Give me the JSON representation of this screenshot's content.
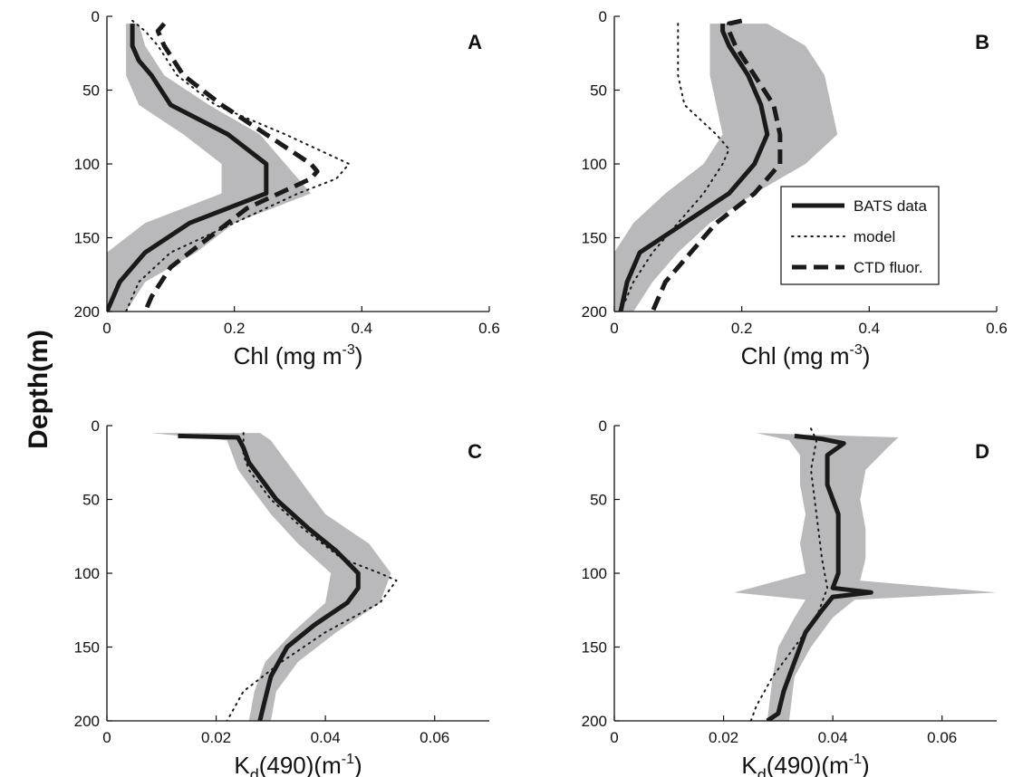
{
  "figure": {
    "ylabel": "Depth(m)"
  },
  "legend": {
    "entries": [
      {
        "label": "BATS data",
        "style": "solid"
      },
      {
        "label": "model",
        "style": "dotted"
      },
      {
        "label": "CTD fluor.",
        "style": "dashed"
      }
    ]
  },
  "colors": {
    "line": "#1a1a1a",
    "band": "#b9b9bc",
    "axis": "#111111"
  },
  "chart_data": [
    {
      "type": "line",
      "panel_label": "A",
      "xlabel": "Chl (mg m",
      "xlabel_sup": "-3",
      "xlabel_suffix": ")",
      "xlim": [
        0,
        0.6
      ],
      "ylim": [
        0,
        200
      ],
      "y_inverted": true,
      "xticks": [
        0,
        0.2,
        0.4,
        0.6
      ],
      "xtick_labels": [
        "0",
        "0.2",
        "0.4",
        "0.6"
      ],
      "yticks": [
        0,
        50,
        100,
        150,
        200
      ],
      "ytick_labels": [
        "0",
        "50",
        "100",
        "150",
        "200"
      ],
      "band": {
        "left": [
          [
            0.03,
            5
          ],
          [
            0.03,
            20
          ],
          [
            0.03,
            40
          ],
          [
            0.05,
            60
          ],
          [
            0.12,
            80
          ],
          [
            0.18,
            100
          ],
          [
            0.18,
            120
          ],
          [
            0.06,
            140
          ],
          [
            0.0,
            160
          ],
          [
            0.0,
            200
          ]
        ],
        "right": [
          [
            0.05,
            5
          ],
          [
            0.06,
            20
          ],
          [
            0.09,
            40
          ],
          [
            0.16,
            60
          ],
          [
            0.24,
            80
          ],
          [
            0.28,
            100
          ],
          [
            0.32,
            120
          ],
          [
            0.2,
            140
          ],
          [
            0.14,
            160
          ],
          [
            0.06,
            180
          ],
          [
            0.03,
            200
          ]
        ]
      },
      "series": [
        {
          "style": "dashed",
          "points": [
            [
              0.09,
              5
            ],
            [
              0.08,
              10
            ],
            [
              0.09,
              20
            ],
            [
              0.12,
              40
            ],
            [
              0.18,
              60
            ],
            [
              0.25,
              80
            ],
            [
              0.32,
              100
            ],
            [
              0.33,
              105
            ],
            [
              0.32,
              110
            ],
            [
              0.27,
              120
            ],
            [
              0.22,
              130
            ],
            [
              0.16,
              150
            ],
            [
              0.1,
              170
            ],
            [
              0.07,
              190
            ],
            [
              0.06,
              200
            ]
          ]
        },
        {
          "style": "dotted",
          "points": [
            [
              0.04,
              3
            ],
            [
              0.06,
              10
            ],
            [
              0.08,
              20
            ],
            [
              0.11,
              40
            ],
            [
              0.17,
              60
            ],
            [
              0.28,
              80
            ],
            [
              0.38,
              100
            ],
            [
              0.36,
              110
            ],
            [
              0.3,
              120
            ],
            [
              0.2,
              140
            ],
            [
              0.1,
              160
            ],
            [
              0.05,
              180
            ],
            [
              0.03,
              200
            ]
          ]
        },
        {
          "style": "solid",
          "points": [
            [
              0.04,
              5
            ],
            [
              0.04,
              20
            ],
            [
              0.05,
              30
            ],
            [
              0.07,
              40
            ],
            [
              0.1,
              60
            ],
            [
              0.19,
              80
            ],
            [
              0.25,
              100
            ],
            [
              0.25,
              120
            ],
            [
              0.13,
              140
            ],
            [
              0.06,
              160
            ],
            [
              0.02,
              180
            ],
            [
              0.0,
              200
            ]
          ]
        }
      ]
    },
    {
      "type": "line",
      "panel_label": "B",
      "xlabel": "Chl (mg m",
      "xlabel_sup": "-3",
      "xlabel_suffix": ")",
      "xlim": [
        0,
        0.6
      ],
      "ylim": [
        0,
        200
      ],
      "y_inverted": true,
      "xticks": [
        0,
        0.2,
        0.4,
        0.6
      ],
      "xtick_labels": [
        "0",
        "0.2",
        "0.4",
        "0.6"
      ],
      "yticks": [
        0,
        50,
        100,
        150,
        200
      ],
      "ytick_labels": [
        "0",
        "50",
        "100",
        "150",
        "200"
      ],
      "band": {
        "left": [
          [
            0.15,
            5
          ],
          [
            0.15,
            20
          ],
          [
            0.15,
            40
          ],
          [
            0.16,
            60
          ],
          [
            0.17,
            80
          ],
          [
            0.14,
            100
          ],
          [
            0.08,
            120
          ],
          [
            0.03,
            140
          ],
          [
            0.0,
            160
          ],
          [
            0.0,
            200
          ]
        ],
        "right": [
          [
            0.24,
            5
          ],
          [
            0.3,
            20
          ],
          [
            0.33,
            40
          ],
          [
            0.34,
            60
          ],
          [
            0.35,
            80
          ],
          [
            0.3,
            100
          ],
          [
            0.22,
            120
          ],
          [
            0.15,
            140
          ],
          [
            0.1,
            160
          ],
          [
            0.06,
            180
          ],
          [
            0.03,
            200
          ]
        ]
      },
      "series": [
        {
          "style": "dotted",
          "points": [
            [
              0.1,
              5
            ],
            [
              0.1,
              20
            ],
            [
              0.1,
              40
            ],
            [
              0.11,
              60
            ],
            [
              0.16,
              80
            ],
            [
              0.18,
              90
            ],
            [
              0.17,
              100
            ],
            [
              0.14,
              120
            ],
            [
              0.1,
              140
            ],
            [
              0.06,
              160
            ],
            [
              0.03,
              180
            ],
            [
              0.01,
              200
            ]
          ]
        },
        {
          "style": "dashed",
          "points": [
            [
              0.2,
              3
            ],
            [
              0.18,
              5
            ],
            [
              0.18,
              10
            ],
            [
              0.19,
              20
            ],
            [
              0.22,
              40
            ],
            [
              0.25,
              60
            ],
            [
              0.26,
              80
            ],
            [
              0.26,
              100
            ],
            [
              0.22,
              120
            ],
            [
              0.16,
              140
            ],
            [
              0.12,
              160
            ],
            [
              0.08,
              180
            ],
            [
              0.06,
              200
            ]
          ]
        },
        {
          "style": "solid",
          "points": [
            [
              0.17,
              5
            ],
            [
              0.17,
              10
            ],
            [
              0.18,
              20
            ],
            [
              0.21,
              40
            ],
            [
              0.23,
              60
            ],
            [
              0.24,
              80
            ],
            [
              0.22,
              100
            ],
            [
              0.18,
              120
            ],
            [
              0.11,
              140
            ],
            [
              0.04,
              160
            ],
            [
              0.02,
              180
            ],
            [
              0.01,
              200
            ]
          ]
        }
      ]
    },
    {
      "type": "line",
      "panel_label": "C",
      "xlabel": "K",
      "xlabel_sub": "d",
      "xlabel_suffix": "(490)(m",
      "xlabel_sup": "-1",
      "xlabel_end": ")",
      "xlim": [
        0,
        0.07
      ],
      "ylim": [
        0,
        200
      ],
      "y_inverted": true,
      "xticks": [
        0,
        0.02,
        0.04,
        0.06
      ],
      "xtick_labels": [
        "0",
        "0.02",
        "0.04",
        "0.06"
      ],
      "yticks": [
        0,
        50,
        100,
        150,
        200
      ],
      "ytick_labels": [
        "0",
        "50",
        "100",
        "150",
        "200"
      ],
      "band": {
        "left": [
          [
            0.008,
            5
          ],
          [
            0.022,
            10
          ],
          [
            0.023,
            20
          ],
          [
            0.024,
            30
          ],
          [
            0.026,
            40
          ],
          [
            0.03,
            60
          ],
          [
            0.035,
            80
          ],
          [
            0.041,
            100
          ],
          [
            0.04,
            120
          ],
          [
            0.034,
            140
          ],
          [
            0.029,
            160
          ],
          [
            0.027,
            180
          ],
          [
            0.026,
            200
          ]
        ],
        "right": [
          [
            0.028,
            5
          ],
          [
            0.03,
            10
          ],
          [
            0.032,
            20
          ],
          [
            0.034,
            30
          ],
          [
            0.036,
            40
          ],
          [
            0.04,
            60
          ],
          [
            0.048,
            80
          ],
          [
            0.052,
            100
          ],
          [
            0.05,
            120
          ],
          [
            0.042,
            140
          ],
          [
            0.035,
            160
          ],
          [
            0.031,
            180
          ],
          [
            0.03,
            200
          ]
        ]
      },
      "series": [
        {
          "style": "dotted",
          "points": [
            [
              0.025,
              5
            ],
            [
              0.025,
              20
            ],
            [
              0.026,
              30
            ],
            [
              0.03,
              50
            ],
            [
              0.036,
              70
            ],
            [
              0.043,
              90
            ],
            [
              0.05,
              100
            ],
            [
              0.053,
              105
            ],
            [
              0.05,
              120
            ],
            [
              0.04,
              140
            ],
            [
              0.032,
              160
            ],
            [
              0.025,
              180
            ],
            [
              0.022,
              200
            ]
          ]
        },
        {
          "style": "solid",
          "points": [
            [
              0.013,
              7
            ],
            [
              0.024,
              8
            ],
            [
              0.025,
              15
            ],
            [
              0.026,
              25
            ],
            [
              0.028,
              35
            ],
            [
              0.031,
              50
            ],
            [
              0.037,
              70
            ],
            [
              0.042,
              85
            ],
            [
              0.046,
              100
            ],
            [
              0.046,
              110
            ],
            [
              0.044,
              120
            ],
            [
              0.038,
              135
            ],
            [
              0.033,
              150
            ],
            [
              0.03,
              170
            ],
            [
              0.029,
              185
            ],
            [
              0.028,
              200
            ]
          ]
        }
      ]
    },
    {
      "type": "line",
      "panel_label": "D",
      "xlabel": "K",
      "xlabel_sub": "d",
      "xlabel_suffix": "(490)(m",
      "xlabel_sup": "-1",
      "xlabel_end": ")",
      "xlim": [
        0,
        0.07
      ],
      "ylim": [
        0,
        200
      ],
      "y_inverted": true,
      "xticks": [
        0,
        0.02,
        0.04,
        0.06
      ],
      "xtick_labels": [
        "0",
        "0.02",
        "0.04",
        "0.06"
      ],
      "yticks": [
        0,
        50,
        100,
        150,
        200
      ],
      "ytick_labels": [
        "0",
        "50",
        "100",
        "150",
        "200"
      ],
      "band": {
        "left": [
          [
            0.026,
            5
          ],
          [
            0.032,
            10
          ],
          [
            0.034,
            20
          ],
          [
            0.034,
            40
          ],
          [
            0.035,
            60
          ],
          [
            0.034,
            80
          ],
          [
            0.035,
            100
          ],
          [
            0.022,
            113
          ],
          [
            0.035,
            118
          ],
          [
            0.033,
            130
          ],
          [
            0.03,
            150
          ],
          [
            0.029,
            170
          ],
          [
            0.028,
            200
          ]
        ],
        "right": [
          [
            0.052,
            8
          ],
          [
            0.05,
            15
          ],
          [
            0.046,
            30
          ],
          [
            0.045,
            50
          ],
          [
            0.046,
            70
          ],
          [
            0.046,
            90
          ],
          [
            0.045,
            105
          ],
          [
            0.07,
            113
          ],
          [
            0.044,
            118
          ],
          [
            0.04,
            130
          ],
          [
            0.036,
            150
          ],
          [
            0.033,
            170
          ],
          [
            0.032,
            200
          ]
        ]
      },
      "series": [
        {
          "style": "dotted",
          "points": [
            [
              0.036,
              2
            ],
            [
              0.037,
              10
            ],
            [
              0.036,
              30
            ],
            [
              0.037,
              60
            ],
            [
              0.038,
              90
            ],
            [
              0.039,
              110
            ],
            [
              0.037,
              130
            ],
            [
              0.033,
              150
            ],
            [
              0.029,
              170
            ],
            [
              0.026,
              190
            ],
            [
              0.025,
              200
            ]
          ]
        },
        {
          "style": "solid",
          "points": [
            [
              0.033,
              7
            ],
            [
              0.038,
              9
            ],
            [
              0.042,
              12
            ],
            [
              0.039,
              20
            ],
            [
              0.039,
              40
            ],
            [
              0.041,
              60
            ],
            [
              0.041,
              80
            ],
            [
              0.041,
              100
            ],
            [
              0.04,
              110
            ],
            [
              0.047,
              113
            ],
            [
              0.04,
              116
            ],
            [
              0.038,
              125
            ],
            [
              0.035,
              140
            ],
            [
              0.033,
              160
            ],
            [
              0.031,
              180
            ],
            [
              0.03,
              195
            ],
            [
              0.028,
              200
            ]
          ]
        }
      ]
    }
  ]
}
